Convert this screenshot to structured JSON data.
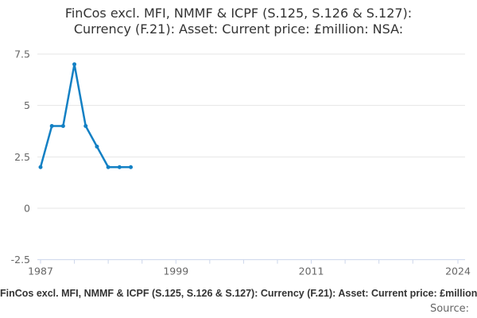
{
  "page": {
    "background": "#ffffff"
  },
  "chart_data": {
    "type": "line",
    "title": "FinCos excl. MFI, NMMF & ICPF (S.125, S.126 & S.127): Currency (F.21): Asset: Current price: £million: NSA:",
    "title_lines": [
      "FinCos excl. MFI, NMMF & ICPF (S.125, S.126 & S.127):",
      "Currency (F.21): Asset: Current price: £million: NSA:"
    ],
    "series": [
      {
        "name": "FinCos excl. MFI, NMMF & ICPF (S.125, S.126 & S.127): Currency (F.21): Asset: Current price: £million: NSA:",
        "x": [
          1987,
          1988,
          1989,
          1990,
          1991,
          1992,
          1993,
          1994,
          1995
        ],
        "values": [
          2,
          4,
          4,
          7,
          4,
          3,
          2,
          2,
          2
        ]
      }
    ],
    "xlabel": "",
    "ylabel": "",
    "xlim": [
      1987,
      2024
    ],
    "ylim": [
      -2.5,
      7.5
    ],
    "xticks": [
      1987,
      1990,
      1993,
      1996,
      1999,
      2002,
      2005,
      2008,
      2011,
      2014,
      2017,
      2020,
      2024
    ],
    "xticks_labeled": [
      1987,
      1999,
      2011,
      2024
    ],
    "yticks": [
      -2.5,
      0,
      2.5,
      5,
      7.5
    ],
    "ytick_labels": [
      "-2.5",
      "0",
      "2.5",
      "5",
      "7.5"
    ],
    "grid": true,
    "legend_position": "bottom",
    "marker": "circle",
    "colors": {
      "line": "#1380c4",
      "grid": "#e6e6e6",
      "axis": "#ccd6eb",
      "tick_label": "#666666",
      "title": "#333333",
      "legend_text": "#333333",
      "source_text": "#666666"
    },
    "source_label": "Source:"
  }
}
